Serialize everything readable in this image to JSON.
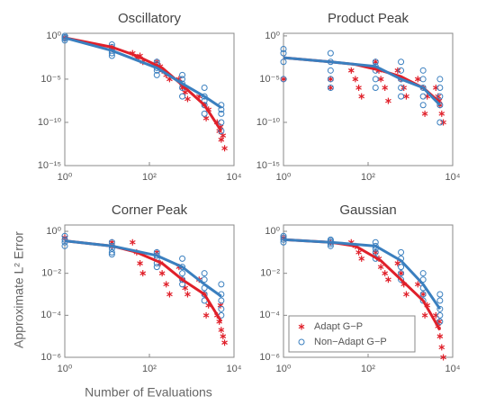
{
  "x_label": "Number of Evaluations",
  "y_label": "Approximate L² Error",
  "chart_data": [
    {
      "type": "scatter",
      "title": "Oscillatory",
      "log_x": true,
      "log_y": true,
      "xlim": [
        1,
        10000
      ],
      "xticks": [
        {
          "value": 1,
          "label": "10⁰"
        },
        {
          "value": 100,
          "label": "10²"
        },
        {
          "value": 10000,
          "label": "10⁴"
        }
      ],
      "ylim": [
        1e-15,
        2
      ],
      "yticks": [
        {
          "value": 1e-15,
          "label": "10⁻¹⁵"
        },
        {
          "value": 1e-10,
          "label": "10⁻¹⁰"
        },
        {
          "value": 1e-05,
          "label": "10⁻⁵"
        },
        {
          "value": 1,
          "label": "10⁰"
        }
      ],
      "series": [
        {
          "color": "#e0202a",
          "marker": "star",
          "x": [
            1,
            13,
            13,
            40,
            50,
            60,
            70,
            150,
            180,
            200,
            250,
            300,
            500,
            600,
            700,
            800,
            1500,
            2000,
            2500,
            2200,
            4000,
            4500,
            5000,
            5500,
            6000,
            4800
          ],
          "values": [
            0.6,
            0.05,
            0.03,
            0.01,
            0.003,
            0.005,
            0.001,
            0.001,
            0.0003,
            0.0001,
            3e-05,
            1e-05,
            1e-05,
            1e-06,
            3e-07,
            5e-08,
            1e-07,
            1e-08,
            3e-09,
            3e-10,
            1e-10,
            1e-11,
            1e-12,
            3e-12,
            1e-13,
            3e-11
          ],
          "fit_x": [
            1,
            13,
            50,
            200,
            600,
            2000,
            5000
          ],
          "fit_values": [
            0.6,
            0.05,
            0.005,
            0.0002,
            2e-06,
            1e-08,
            1e-11
          ]
        },
        {
          "color": "#3a7fbf",
          "marker": "circle",
          "x": [
            1,
            1,
            1,
            1,
            13,
            13,
            13,
            13,
            13,
            150,
            150,
            150,
            150,
            150,
            600,
            600,
            600,
            600,
            600,
            2000,
            2000,
            2000,
            2000,
            2000,
            5000,
            5000,
            5000,
            5000,
            5000
          ],
          "values": [
            1,
            0.7,
            0.5,
            0.3,
            0.1,
            0.05,
            0.02,
            0.01,
            0.005,
            0.001,
            0.0005,
            0.0002,
            0.0001,
            3e-05,
            3e-05,
            1e-05,
            3e-06,
            1e-06,
            1e-07,
            1e-06,
            1e-07,
            3e-08,
            1e-08,
            1e-09,
            1e-08,
            3e-09,
            1e-09,
            1e-10,
            1e-11
          ],
          "fit_x": [
            1,
            13,
            150,
            600,
            2000,
            5000
          ],
          "fit_values": [
            0.6,
            0.02,
            0.0002,
            3e-06,
            1e-07,
            5e-09
          ]
        }
      ]
    },
    {
      "type": "scatter",
      "title": "Product Peak",
      "log_x": true,
      "log_y": true,
      "xlim": [
        1,
        10000
      ],
      "xticks": [
        {
          "value": 1,
          "label": "10⁰"
        },
        {
          "value": 100,
          "label": "10²"
        },
        {
          "value": 10000,
          "label": "10⁴"
        }
      ],
      "ylim": [
        1e-15,
        2
      ],
      "yticks": [
        {
          "value": 1e-15,
          "label": "10⁻¹⁵"
        },
        {
          "value": 1e-10,
          "label": "10⁻¹⁰"
        },
        {
          "value": 1e-05,
          "label": "10⁻⁵"
        },
        {
          "value": 1,
          "label": "10⁰"
        }
      ],
      "series": [
        {
          "color": "#e0202a",
          "marker": "star",
          "x": [
            1,
            13,
            13,
            40,
            50,
            60,
            70,
            150,
            180,
            200,
            250,
            300,
            500,
            600,
            700,
            800,
            1500,
            2000,
            2500,
            2200,
            4000,
            4500,
            5000,
            5500,
            6000,
            4800
          ],
          "values": [
            1e-05,
            1e-05,
            1e-06,
            0.0001,
            1e-05,
            1e-06,
            1e-07,
            0.001,
            0.0001,
            1e-05,
            1e-06,
            3e-08,
            0.0001,
            1e-05,
            1e-06,
            1e-07,
            1e-05,
            1e-06,
            1e-07,
            1e-09,
            1e-06,
            1e-07,
            1e-08,
            1e-09,
            1e-10,
            3e-08
          ],
          "fit_x": [
            1,
            13,
            50,
            200,
            600,
            2000,
            5000
          ],
          "fit_values": [
            0.003,
            0.001,
            0.0005,
            0.0001,
            2e-05,
            1e-06,
            2e-08
          ]
        },
        {
          "color": "#3a7fbf",
          "marker": "circle",
          "x": [
            1,
            1,
            1,
            1,
            13,
            13,
            13,
            13,
            13,
            150,
            150,
            150,
            150,
            150,
            600,
            600,
            600,
            600,
            600,
            2000,
            2000,
            2000,
            2000,
            2000,
            5000,
            5000,
            5000,
            5000,
            5000
          ],
          "values": [
            0.03,
            0.01,
            0.001,
            1e-05,
            0.01,
            0.001,
            0.0001,
            1e-05,
            1e-06,
            0.001,
            0.0003,
            0.0001,
            1e-05,
            1e-06,
            0.001,
            0.0001,
            1e-05,
            1e-06,
            1e-07,
            0.0001,
            1e-05,
            1e-06,
            1e-07,
            1e-08,
            1e-05,
            1e-06,
            1e-07,
            1e-08,
            1e-10
          ],
          "fit_x": [
            1,
            13,
            150,
            600,
            2000,
            5000
          ],
          "fit_values": [
            0.003,
            0.001,
            0.0003,
            1e-05,
            1e-06,
            1e-08
          ]
        }
      ]
    },
    {
      "type": "scatter",
      "title": "Corner Peak",
      "log_x": true,
      "log_y": true,
      "xlim": [
        1,
        10000
      ],
      "xticks": [
        {
          "value": 1,
          "label": "10⁰"
        },
        {
          "value": 100,
          "label": "10²"
        },
        {
          "value": 10000,
          "label": "10⁴"
        }
      ],
      "ylim": [
        1e-06,
        2
      ],
      "yticks": [
        {
          "value": 1e-06,
          "label": "10⁻⁶"
        },
        {
          "value": 0.0001,
          "label": "10⁻⁴"
        },
        {
          "value": 0.01,
          "label": "10⁻²"
        },
        {
          "value": 1,
          "label": "10⁰"
        }
      ],
      "series": [
        {
          "color": "#e0202a",
          "marker": "star",
          "x": [
            1,
            13,
            13,
            40,
            50,
            60,
            70,
            150,
            180,
            200,
            250,
            300,
            500,
            600,
            700,
            800,
            1500,
            2000,
            2500,
            2200,
            4000,
            4500,
            5000,
            5500,
            6000,
            4800
          ],
          "values": [
            0.5,
            0.3,
            0.2,
            0.3,
            0.1,
            0.03,
            0.01,
            0.1,
            0.03,
            0.01,
            0.003,
            0.001,
            0.02,
            0.005,
            0.002,
            0.001,
            0.005,
            0.001,
            0.0003,
            0.0001,
            0.0001,
            5e-05,
            2e-05,
            1e-05,
            5e-06,
            0.0003
          ],
          "fit_x": [
            1,
            13,
            50,
            200,
            600,
            2000,
            5000
          ],
          "fit_values": [
            0.35,
            0.2,
            0.1,
            0.03,
            0.005,
            0.001,
            5e-05
          ]
        },
        {
          "color": "#3a7fbf",
          "marker": "circle",
          "x": [
            1,
            1,
            1,
            1,
            13,
            13,
            13,
            13,
            13,
            150,
            150,
            150,
            150,
            150,
            600,
            600,
            600,
            600,
            600,
            2000,
            2000,
            2000,
            2000,
            2000,
            5000,
            5000,
            5000,
            5000,
            5000
          ],
          "values": [
            0.6,
            0.4,
            0.3,
            0.2,
            0.3,
            0.2,
            0.15,
            0.1,
            0.08,
            0.1,
            0.07,
            0.05,
            0.03,
            0.02,
            0.05,
            0.02,
            0.01,
            0.005,
            0.003,
            0.01,
            0.005,
            0.002,
            0.001,
            0.0005,
            0.003,
            0.001,
            0.0005,
            0.0002,
            0.0001
          ],
          "fit_x": [
            1,
            13,
            150,
            600,
            2000,
            5000
          ],
          "fit_values": [
            0.35,
            0.2,
            0.07,
            0.02,
            0.003,
            0.0008
          ]
        }
      ]
    },
    {
      "type": "scatter",
      "title": "Gaussian",
      "log_x": true,
      "log_y": true,
      "legend": "lower left",
      "xlim": [
        1,
        10000
      ],
      "xticks": [
        {
          "value": 1,
          "label": "10⁰"
        },
        {
          "value": 100,
          "label": "10²"
        },
        {
          "value": 10000,
          "label": "10⁴"
        }
      ],
      "ylim": [
        1e-06,
        2
      ],
      "yticks": [
        {
          "value": 1e-06,
          "label": "10⁻⁶"
        },
        {
          "value": 0.0001,
          "label": "10⁻⁴"
        },
        {
          "value": 0.01,
          "label": "10⁻²"
        },
        {
          "value": 1,
          "label": "10⁰"
        }
      ],
      "series": [
        {
          "name": "Adapt G−P",
          "color": "#e0202a",
          "marker": "star",
          "x": [
            1,
            13,
            13,
            40,
            50,
            60,
            70,
            150,
            180,
            200,
            250,
            300,
            500,
            600,
            700,
            800,
            1500,
            2000,
            2500,
            2200,
            4000,
            4500,
            5000,
            5500,
            6000,
            4800
          ],
          "values": [
            0.5,
            0.3,
            0.3,
            0.3,
            0.2,
            0.1,
            0.05,
            0.1,
            0.05,
            0.02,
            0.01,
            0.005,
            0.03,
            0.01,
            0.003,
            0.001,
            0.003,
            0.001,
            0.0003,
            0.0001,
            0.0001,
            3e-05,
            1e-05,
            3e-06,
            1e-06,
            5e-05
          ],
          "fit_x": [
            1,
            13,
            50,
            200,
            600,
            2000,
            5000
          ],
          "fit_values": [
            0.4,
            0.3,
            0.2,
            0.04,
            0.005,
            0.0005,
            2e-05
          ]
        },
        {
          "name": "Non−Adapt G−P",
          "color": "#3a7fbf",
          "marker": "circle",
          "x": [
            1,
            1,
            1,
            1,
            13,
            13,
            13,
            13,
            13,
            150,
            150,
            150,
            150,
            150,
            600,
            600,
            600,
            600,
            600,
            2000,
            2000,
            2000,
            2000,
            2000,
            5000,
            5000,
            5000,
            5000,
            5000
          ],
          "values": [
            0.6,
            0.5,
            0.4,
            0.3,
            0.4,
            0.35,
            0.3,
            0.25,
            0.2,
            0.3,
            0.2,
            0.15,
            0.1,
            0.05,
            0.1,
            0.05,
            0.02,
            0.01,
            0.005,
            0.01,
            0.005,
            0.002,
            0.001,
            0.0005,
            0.001,
            0.0005,
            0.0002,
            0.0001,
            5e-05
          ],
          "fit_x": [
            1,
            13,
            150,
            600,
            2000,
            5000
          ],
          "fit_values": [
            0.4,
            0.3,
            0.2,
            0.04,
            0.003,
            0.0002
          ]
        }
      ]
    }
  ]
}
